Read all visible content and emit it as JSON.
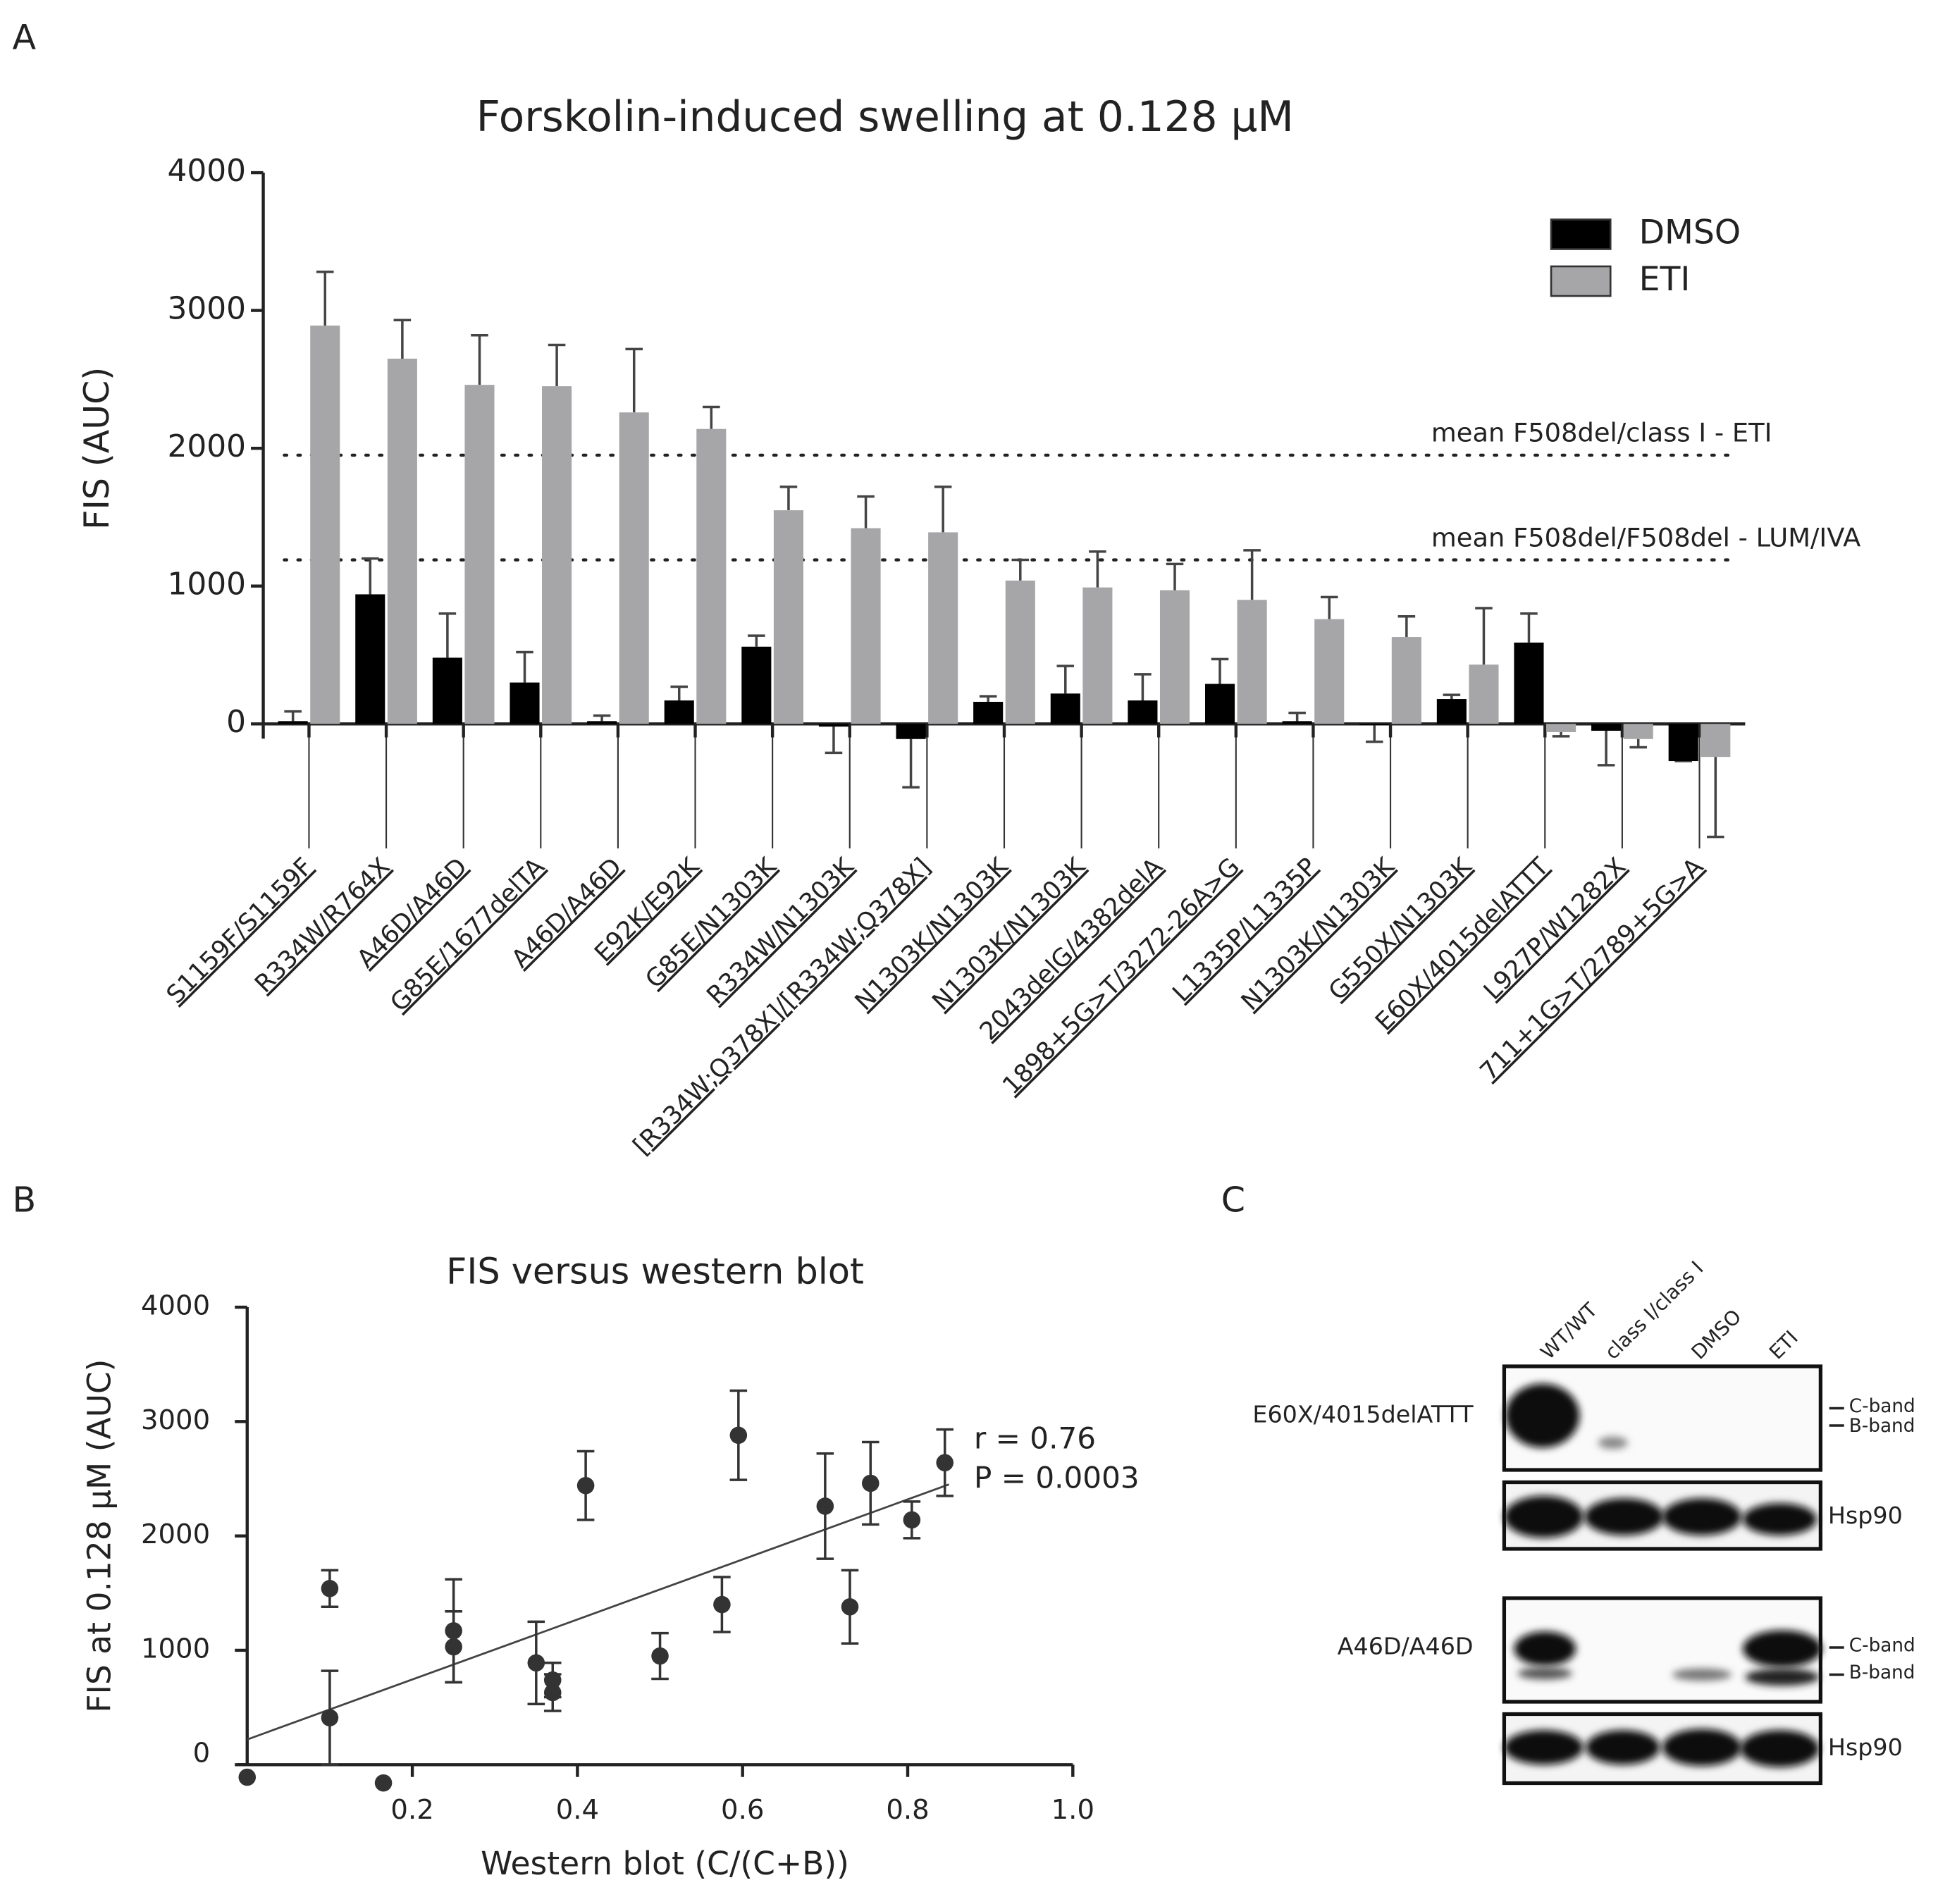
{
  "panel_labels": [
    "A",
    "B",
    "C"
  ],
  "chart_data": [
    {
      "type": "bar",
      "title": "Forskolin-induced swelling at 0.128 µM",
      "y_label": "FIS (AUC)",
      "categories": [
        "S1159F/S1159F",
        "R334W/R764X",
        "A46D/A46D",
        "G85E/1677delTA",
        "A46D/A46D",
        "E92K/E92K",
        "G85E/N1303K",
        "R334W/N1303K",
        "[R334W;Q378X]/[R334W;Q378X]",
        "N1303K/N1303K",
        "N1303K/N1303K",
        "2043delG/4382delA",
        "1898+5G>T/3272-26A>G",
        "L1335P/L1335P",
        "N1303K/N1303K",
        "G550X/N1303K",
        "E60X/4015delATTT",
        "L927P/W1282X",
        "711+1G>T/2789+5G>A"
      ],
      "series": [
        {
          "name": "DMSO",
          "color": "#000000",
          "values": [
            20,
            940,
            480,
            300,
            20,
            170,
            560,
            -20,
            -110,
            160,
            220,
            170,
            290,
            20,
            -10,
            180,
            590,
            -50,
            -270
          ],
          "errors": [
            70,
            260,
            320,
            220,
            40,
            100,
            80,
            190,
            350,
            40,
            200,
            190,
            180,
            60,
            120,
            30,
            210,
            250,
            0
          ]
        },
        {
          "name": "ETI",
          "color": "#a6a6a8",
          "values": [
            2890,
            2650,
            2460,
            2450,
            2260,
            2140,
            1550,
            1420,
            1390,
            1040,
            990,
            970,
            900,
            760,
            630,
            430,
            -60,
            -110,
            -240
          ],
          "errors": [
            390,
            280,
            360,
            300,
            460,
            160,
            170,
            230,
            330,
            150,
            260,
            190,
            360,
            160,
            150,
            410,
            30,
            60,
            580
          ]
        }
      ],
      "reference_lines": [
        {
          "value": 1950,
          "label": "mean F508del/class I - ETI"
        },
        {
          "value": 1190,
          "label": "mean F508del/F508del - LUM/IVA"
        }
      ],
      "ylim": [
        0,
        4000
      ],
      "yticks": [
        0,
        1000,
        2000,
        3000,
        4000
      ],
      "legend": "top-right"
    },
    {
      "type": "scatter",
      "title": "FIS versus western blot",
      "x_label": "Western blot (C/(C+B))",
      "y_label": "FIS at 0.128 µM (AUC)",
      "x": [
        0.0,
        0.1,
        0.1,
        0.165,
        0.25,
        0.25,
        0.35,
        0.37,
        0.37,
        0.41,
        0.5,
        0.575,
        0.595,
        0.7,
        0.755,
        0.73,
        0.805,
        0.845
      ],
      "values": [
        -110,
        1540,
        410,
        -160,
        1170,
        1030,
        890,
        740,
        630,
        2440,
        950,
        1400,
        2880,
        2260,
        2460,
        1380,
        2140,
        2640
      ],
      "errors": [
        0,
        160,
        410,
        0,
        450,
        310,
        360,
        150,
        160,
        300,
        200,
        240,
        390,
        460,
        360,
        320,
        160,
        290
      ],
      "color": "#333333",
      "trend": {
        "x": [
          0,
          0.85
        ],
        "y": [
          220,
          2450
        ]
      },
      "annotations": [
        "r = 0.76",
        "P = 0.0003"
      ],
      "xlim": [
        0,
        1
      ],
      "xticks": [
        0.2,
        0.4,
        0.6,
        0.8,
        {
          "value": 1,
          "label": "1.0"
        }
      ],
      "ylim": [
        0,
        4000
      ],
      "yticks": [
        0,
        1000,
        2000,
        3000,
        4000
      ]
    }
  ],
  "blot": {
    "lanes": [
      "WT/WT",
      "class I/class I",
      "DMSO",
      "ETI"
    ],
    "rows": [
      {
        "label": "E60X/4015delATTT",
        "band_labels": [
          "C-band",
          "B-band"
        ],
        "loading_control": "Hsp90"
      },
      {
        "label": "A46D/A46D",
        "band_labels": [
          "C-band",
          "B-band"
        ],
        "loading_control": "Hsp90"
      }
    ]
  }
}
